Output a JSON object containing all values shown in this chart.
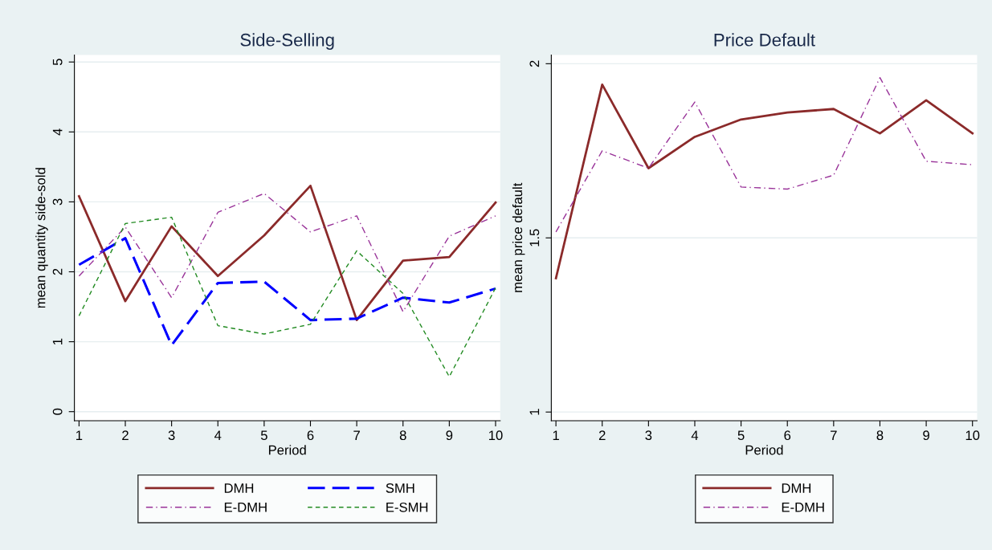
{
  "chart_data": [
    {
      "type": "line",
      "title": "Side-Selling",
      "xlabel": "Period",
      "ylabel": "mean quantity side-sold",
      "x": [
        1,
        2,
        3,
        4,
        5,
        6,
        7,
        8,
        9,
        10
      ],
      "xlim": [
        0.9,
        10.1
      ],
      "xticks": [
        1,
        2,
        3,
        4,
        5,
        6,
        7,
        8,
        9,
        10
      ],
      "ylim": [
        -0.13,
        5.1
      ],
      "yticks": [
        0,
        1,
        2,
        3,
        4,
        5
      ],
      "grid": "y",
      "legend": "bottom",
      "series": [
        {
          "name": "DMH",
          "color": "#8b2a2a",
          "line_style": "solid",
          "values": [
            3.08,
            1.58,
            2.65,
            1.94,
            2.52,
            3.23,
            1.31,
            2.16,
            2.21,
            2.99
          ]
        },
        {
          "name": "SMH",
          "color": "#0000ff",
          "line_style": "longdash",
          "values": [
            2.1,
            2.48,
            0.95,
            1.84,
            1.86,
            1.31,
            1.33,
            1.63,
            1.56,
            1.76
          ]
        },
        {
          "name": "E-DMH",
          "color": "#993399",
          "line_style": "dashdot",
          "values": [
            1.94,
            2.64,
            1.63,
            2.85,
            3.12,
            2.57,
            2.8,
            1.43,
            2.51,
            2.8
          ]
        },
        {
          "name": "E-SMH",
          "color": "#228b22",
          "line_style": "dashed",
          "values": [
            1.37,
            2.69,
            2.78,
            1.23,
            1.11,
            1.25,
            2.3,
            1.69,
            0.5,
            1.77
          ]
        }
      ]
    },
    {
      "type": "line",
      "title": "Price Default",
      "xlabel": "Period",
      "ylabel": "mean price default",
      "x": [
        1,
        2,
        3,
        4,
        5,
        6,
        7,
        8,
        9,
        10
      ],
      "xlim": [
        0.9,
        10.1
      ],
      "xticks": [
        1,
        2,
        3,
        4,
        5,
        6,
        7,
        8,
        9,
        10
      ],
      "ylim": [
        0.975,
        2.025
      ],
      "yticks": [
        1,
        1.5,
        2
      ],
      "grid": "y",
      "legend": "bottom",
      "series": [
        {
          "name": "DMH",
          "color": "#8b2a2a",
          "line_style": "solid",
          "values": [
            1.384,
            1.94,
            1.7,
            1.79,
            1.84,
            1.86,
            1.87,
            1.8,
            1.895,
            1.8
          ]
        },
        {
          "name": "E-DMH",
          "color": "#993399",
          "line_style": "dashdot",
          "values": [
            1.517,
            1.75,
            1.7,
            1.89,
            1.646,
            1.64,
            1.68,
            1.96,
            1.72,
            1.71
          ]
        }
      ]
    }
  ]
}
